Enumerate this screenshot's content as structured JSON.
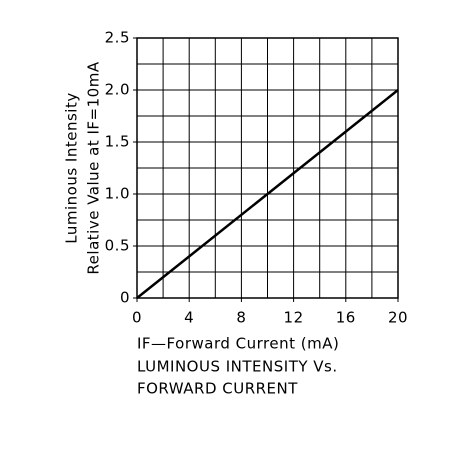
{
  "chart_data": {
    "type": "line",
    "title": [
      "LUMINOUS INTENSITY Vs.",
      "FORWARD CURRENT"
    ],
    "xlabel": "IF—Forward Current (mA)",
    "ylabel": [
      "Luminous Intensity",
      "Relative Value at IF=10mA"
    ],
    "x": [
      0,
      20
    ],
    "series": [
      {
        "color": "#000000",
        "values": [
          0,
          2.0
        ]
      }
    ],
    "xlim": [
      0,
      20
    ],
    "xticks": [
      0,
      4,
      8,
      12,
      16,
      20
    ],
    "ylim": [
      0,
      2.5
    ],
    "yticks": [
      0,
      0.5,
      {
        "value": 1,
        "label": "1.0"
      },
      1.5,
      {
        "value": 2,
        "label": "2.0"
      },
      2.5
    ],
    "xgrid": [
      0,
      2,
      4,
      6,
      8,
      10,
      12,
      14,
      16,
      18,
      20
    ],
    "ygrid": [
      0,
      0.25,
      0.5,
      0.75,
      1,
      1.25,
      1.5,
      1.75,
      2,
      2.25,
      2.5
    ],
    "grid": true
  }
}
